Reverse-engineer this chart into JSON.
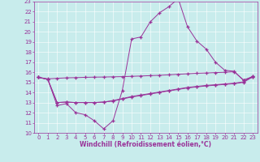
{
  "title": "",
  "xlabel": "Windchill (Refroidissement éolien,°C)",
  "ylabel": "",
  "bg_color": "#c8ecec",
  "line_color": "#993399",
  "xlim": [
    -0.5,
    23.5
  ],
  "ylim": [
    10,
    23
  ],
  "xticks": [
    0,
    1,
    2,
    3,
    4,
    5,
    6,
    7,
    8,
    9,
    10,
    11,
    12,
    13,
    14,
    15,
    16,
    17,
    18,
    19,
    20,
    21,
    22,
    23
  ],
  "yticks": [
    10,
    11,
    12,
    13,
    14,
    15,
    16,
    17,
    18,
    19,
    20,
    21,
    22,
    23
  ],
  "series": {
    "main": [
      15.5,
      15.3,
      12.7,
      12.9,
      12.0,
      11.8,
      11.2,
      10.4,
      11.2,
      14.2,
      19.3,
      19.5,
      21.0,
      21.9,
      22.5,
      23.3,
      20.5,
      19.1,
      18.3,
      17.0,
      16.2,
      16.1,
      15.2,
      15.6
    ],
    "trend1": [
      15.5,
      15.35,
      15.4,
      15.45,
      15.47,
      15.5,
      15.52,
      15.53,
      15.55,
      15.57,
      15.6,
      15.63,
      15.67,
      15.7,
      15.75,
      15.8,
      15.85,
      15.9,
      15.93,
      15.97,
      16.0,
      16.05,
      15.25,
      15.5
    ],
    "trend2": [
      15.5,
      15.3,
      13.0,
      13.05,
      13.0,
      13.0,
      13.0,
      13.05,
      13.15,
      13.35,
      13.55,
      13.7,
      13.85,
      14.0,
      14.15,
      14.3,
      14.45,
      14.55,
      14.65,
      14.72,
      14.8,
      14.87,
      15.0,
      15.55
    ],
    "trend3": [
      15.5,
      15.3,
      13.0,
      13.05,
      13.0,
      13.0,
      13.0,
      13.05,
      13.2,
      13.4,
      13.6,
      13.75,
      13.9,
      14.05,
      14.2,
      14.35,
      14.5,
      14.6,
      14.7,
      14.77,
      14.85,
      14.92,
      15.05,
      15.6
    ]
  },
  "marker": "+",
  "markersize": 2.5,
  "linewidth": 0.7,
  "tick_fontsize": 5.0,
  "xlabel_fontsize": 5.5
}
